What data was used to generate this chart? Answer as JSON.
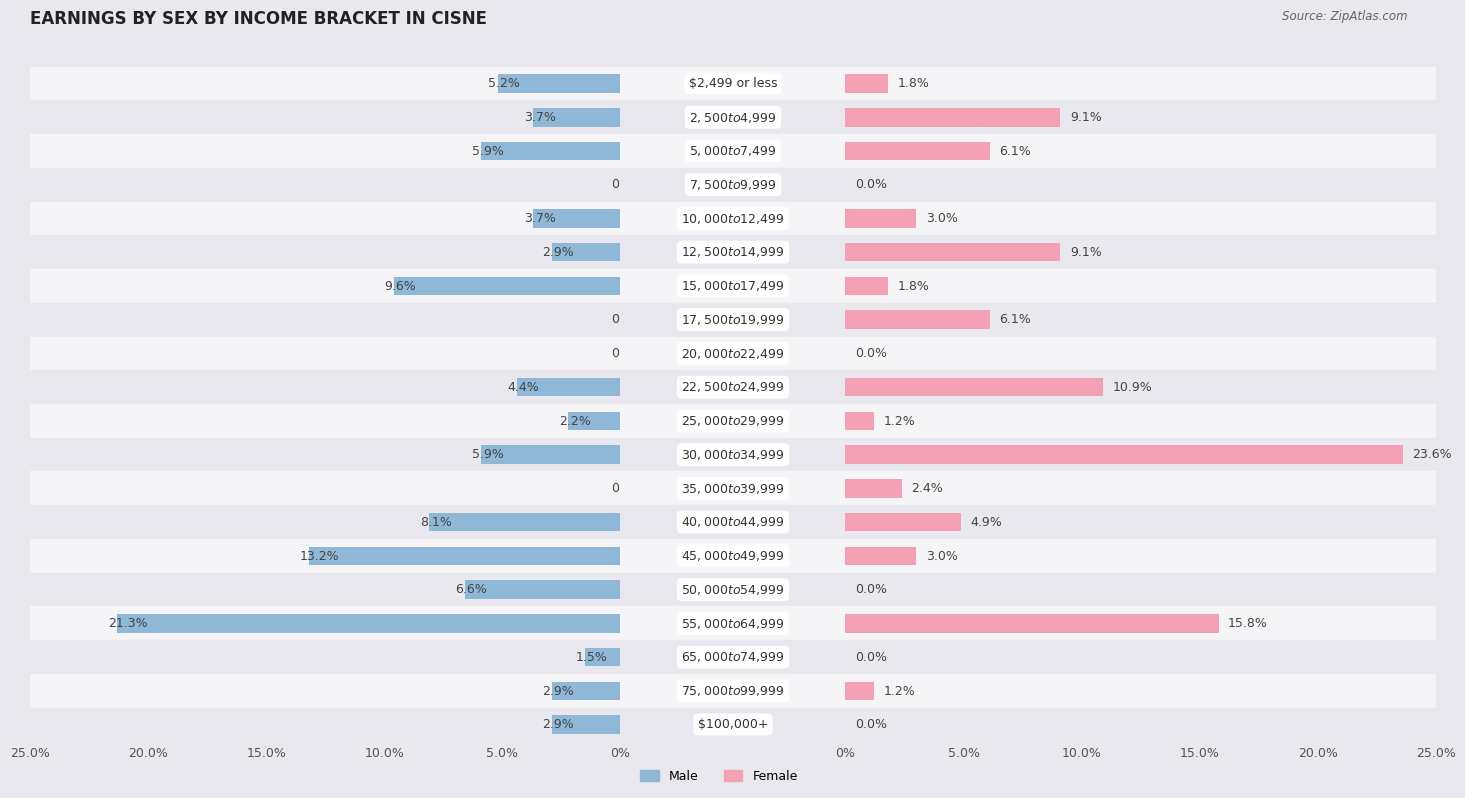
{
  "title": "EARNINGS BY SEX BY INCOME BRACKET IN CISNE",
  "source": "Source: ZipAtlas.com",
  "categories": [
    "$2,499 or less",
    "$2,500 to $4,999",
    "$5,000 to $7,499",
    "$7,500 to $9,999",
    "$10,000 to $12,499",
    "$12,500 to $14,999",
    "$15,000 to $17,499",
    "$17,500 to $19,999",
    "$20,000 to $22,499",
    "$22,500 to $24,999",
    "$25,000 to $29,999",
    "$30,000 to $34,999",
    "$35,000 to $39,999",
    "$40,000 to $44,999",
    "$45,000 to $49,999",
    "$50,000 to $54,999",
    "$55,000 to $64,999",
    "$65,000 to $74,999",
    "$75,000 to $99,999",
    "$100,000+"
  ],
  "male": [
    5.2,
    3.7,
    5.9,
    0.0,
    3.7,
    2.9,
    9.6,
    0.0,
    0.0,
    4.4,
    2.2,
    5.9,
    0.0,
    8.1,
    13.2,
    6.6,
    21.3,
    1.5,
    2.9,
    2.9
  ],
  "female": [
    1.8,
    9.1,
    6.1,
    0.0,
    3.0,
    9.1,
    1.8,
    6.1,
    0.0,
    10.9,
    1.2,
    23.6,
    2.4,
    4.9,
    3.0,
    0.0,
    15.8,
    0.0,
    1.2,
    0.0
  ],
  "male_color": "#8fb8d8",
  "female_color": "#f4a0b5",
  "background_color": "#e8e8ee",
  "row_color_odd": "#e8e8ee",
  "row_color_even": "#f5f5f8",
  "xlim": 25.0,
  "bar_height": 0.55,
  "title_fontsize": 12,
  "label_fontsize": 9,
  "tick_fontsize": 9,
  "value_fontsize": 9,
  "cat_fontsize": 9
}
